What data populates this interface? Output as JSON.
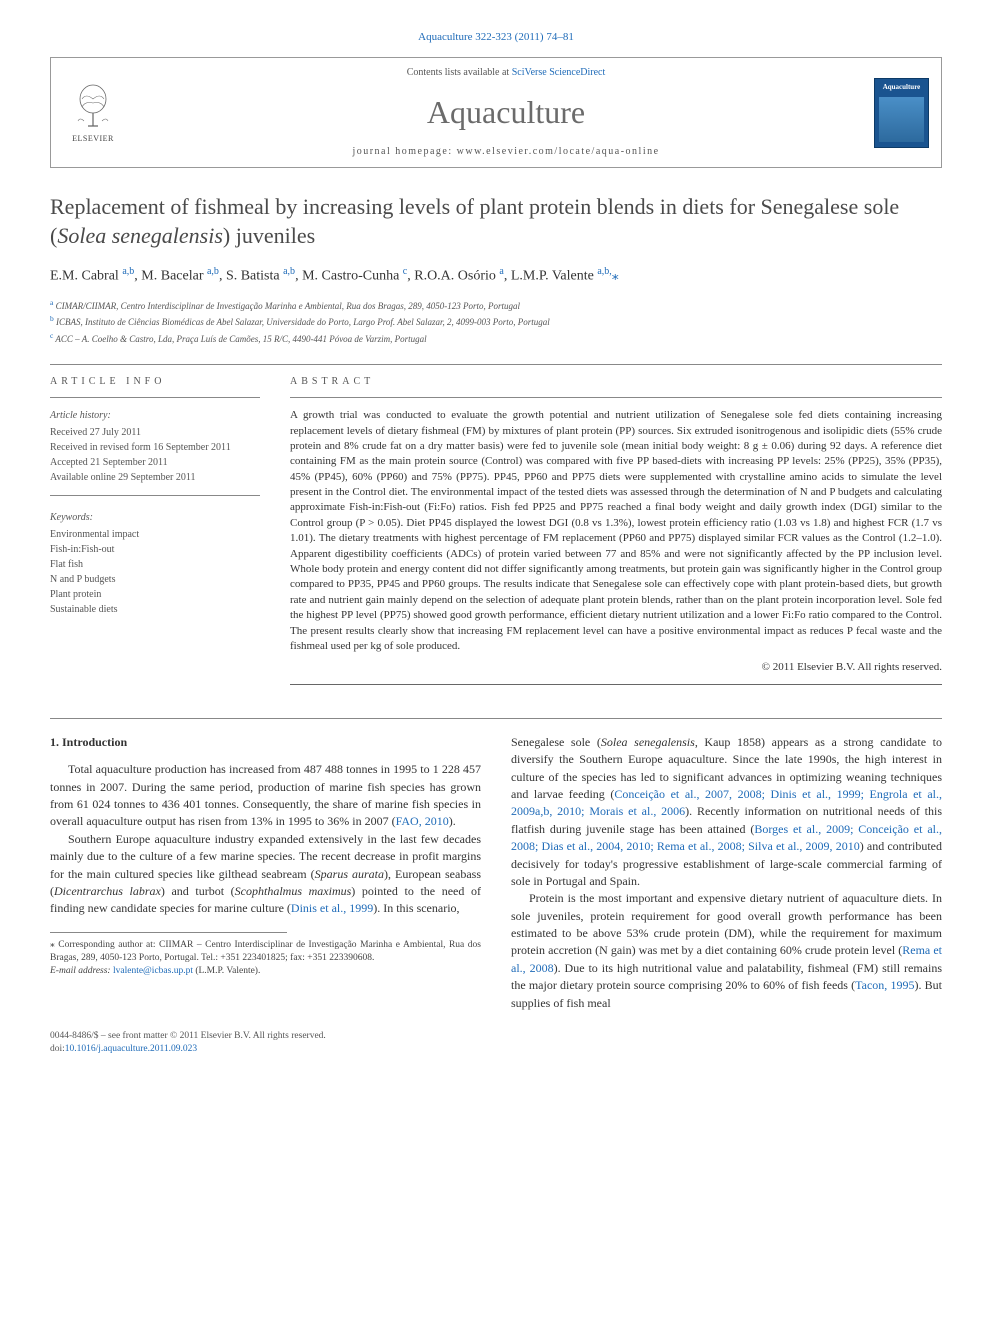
{
  "top_reference": "Aquaculture 322-323 (2011) 74–81",
  "header": {
    "contents_prefix": "Contents lists available at ",
    "contents_link": "SciVerse ScienceDirect",
    "journal_name": "Aquaculture",
    "homepage_label": "journal homepage: www.elsevier.com/locate/aqua-online",
    "elsevier_label": "ELSEVIER",
    "cover_title": "Aquaculture"
  },
  "title": "Replacement of fishmeal by increasing levels of plant protein blends in diets for Senegalese sole (Solea senegalensis) juveniles",
  "authors_html": "E.M. Cabral <sup>a,b</sup>, M. Bacelar <sup>a,b</sup>, S. Batista <sup>a,b</sup>, M. Castro-Cunha <sup>c</sup>, R.O.A. Osório <sup>a</sup>, L.M.P. Valente <sup>a,b,</sup><span class='corr'>⁎</span>",
  "affiliations": [
    {
      "sup": "a",
      "text": "CIMAR/CIIMAR, Centro Interdisciplinar de Investigação Marinha e Ambiental, Rua dos Bragas, 289, 4050-123 Porto, Portugal"
    },
    {
      "sup": "b",
      "text": "ICBAS, Instituto de Ciências Biomédicas de Abel Salazar, Universidade do Porto, Largo Prof. Abel Salazar, 2, 4099-003 Porto, Portugal"
    },
    {
      "sup": "c",
      "text": "ACC – A. Coelho & Castro, Lda, Praça Luís de Camões, 15 R/C, 4490-441 Póvoa de Varzim, Portugal"
    }
  ],
  "article_info": {
    "heading": "ARTICLE INFO",
    "history_label": "Article history:",
    "history": [
      "Received 27 July 2011",
      "Received in revised form 16 September 2011",
      "Accepted 21 September 2011",
      "Available online 29 September 2011"
    ],
    "keywords_label": "Keywords:",
    "keywords": [
      "Environmental impact",
      "Fish-in:Fish-out",
      "Flat fish",
      "N and P budgets",
      "Plant protein",
      "Sustainable diets"
    ]
  },
  "abstract": {
    "heading": "ABSTRACT",
    "text": "A growth trial was conducted to evaluate the growth potential and nutrient utilization of Senegalese sole fed diets containing increasing replacement levels of dietary fishmeal (FM) by mixtures of plant protein (PP) sources. Six extruded isonitrogenous and isolipidic diets (55% crude protein and 8% crude fat on a dry matter basis) were fed to juvenile sole (mean initial body weight: 8 g ± 0.06) during 92 days. A reference diet containing FM as the main protein source (Control) was compared with five PP based-diets with increasing PP levels: 25% (PP25), 35% (PP35), 45% (PP45), 60% (PP60) and 75% (PP75). PP45, PP60 and PP75 diets were supplemented with crystalline amino acids to simulate the level present in the Control diet. The environmental impact of the tested diets was assessed through the determination of N and P budgets and calculating approximate Fish-in:Fish-out (Fi:Fo) ratios. Fish fed PP25 and PP75 reached a final body weight and daily growth index (DGI) similar to the Control group (P > 0.05). Diet PP45 displayed the lowest DGI (0.8 vs 1.3%), lowest protein efficiency ratio (1.03 vs 1.8) and highest FCR (1.7 vs 1.01). The dietary treatments with highest percentage of FM replacement (PP60 and PP75) displayed similar FCR values as the Control (1.2–1.0). Apparent digestibility coefficients (ADCs) of protein varied between 77 and 85% and were not significantly affected by the PP inclusion level. Whole body protein and energy content did not differ significantly among treatments, but protein gain was significantly higher in the Control group compared to PP35, PP45 and PP60 groups. The results indicate that Senegalese sole can effectively cope with plant protein-based diets, but growth rate and nutrient gain mainly depend on the selection of adequate plant protein blends, rather than on the plant protein incorporation level. Sole fed the highest PP level (PP75) showed good growth performance, efficient dietary nutrient utilization and a lower Fi:Fo ratio compared to the Control. The present results clearly show that increasing FM replacement level can have a positive environmental impact as reduces P fecal waste and the fishmeal used per kg of sole produced.",
    "copyright": "© 2011 Elsevier B.V. All rights reserved."
  },
  "introduction": {
    "heading": "1. Introduction",
    "p1": "Total aquaculture production has increased from 487 488 tonnes in 1995 to 1 228 457 tonnes in 2007. During the same period, production of marine fish species has grown from 61 024 tonnes to 436 401 tonnes. Consequently, the share of marine fish species in overall aquaculture output has risen from 13% in 1995 to 36% in 2007 (",
    "p1_ref": "FAO, 2010",
    "p1_tail": ").",
    "p2_a": "Southern Europe aquaculture industry expanded extensively in the last few decades mainly due to the culture of a few marine species. The recent decrease in profit margins for the main cultured species like gilthead seabream (",
    "p2_i1": "Sparus aurata",
    "p2_b": "), European seabass (",
    "p2_i2": "Dicentrarchus labrax",
    "p2_c": ") and turbot (",
    "p2_i3": "Scophthalmus maximus",
    "p2_d": ") pointed to the need of finding new candidate species for marine culture (",
    "p2_ref": "Dinis et al., 1999",
    "p2_e": "). In this scenario,",
    "p3_a": "Senegalese sole (",
    "p3_i1": "Solea senegalensis",
    "p3_b": ", Kaup 1858) appears as a strong candidate to diversify the Southern Europe aquaculture. Since the late 1990s, the high interest in culture of the species has led to significant advances in optimizing weaning techniques and larvae feeding (",
    "p3_ref1": "Conceição et al., 2007, 2008; Dinis et al., 1999; Engrola et al., 2009a,b, 2010; Morais et al., 2006",
    "p3_c": "). Recently information on nutritional needs of this flatfish during juvenile stage has been attained (",
    "p3_ref2": "Borges et al., 2009; Conceição et al., 2008; Dias et al., 2004, 2010; Rema et al., 2008; Silva et al., 2009, 2010",
    "p3_d": ") and contributed decisively for today's progressive establishment of large-scale commercial farming of sole in Portugal and Spain.",
    "p4_a": "Protein is the most important and expensive dietary nutrient of aquaculture diets. In sole juveniles, protein requirement for good overall growth performance has been estimated to be above 53% crude protein (DM), while the requirement for maximum protein accretion (N gain) was met by a diet containing 60% crude protein level (",
    "p4_ref1": "Rema et al., 2008",
    "p4_b": "). Due to its high nutritional value and palatability, fishmeal (FM) still remains the major dietary protein source comprising 20% to 60% of fish feeds (",
    "p4_ref2": "Tacon, 1995",
    "p4_c": "). But supplies of fish meal"
  },
  "footnote": {
    "corr_label": "⁎ Corresponding author at: CIIMAR – Centro Interdisciplinar de Investigação Marinha e Ambiental, Rua dos Bragas, 289, 4050-123 Porto, Portugal. Tel.: +351 223401825; fax: +351 223390608.",
    "email_label": "E-mail address: ",
    "email": "lvalente@icbas.up.pt",
    "email_tail": " (L.M.P. Valente)."
  },
  "footer": {
    "line1": "0044-8486/$ – see front matter © 2011 Elsevier B.V. All rights reserved.",
    "doi_label": "doi:",
    "doi": "10.1016/j.aquaculture.2011.09.023"
  },
  "colors": {
    "link": "#1f6bb8",
    "journal_title": "#6b6b6b",
    "border": "#888888",
    "cover_bg": "#1a5490"
  }
}
